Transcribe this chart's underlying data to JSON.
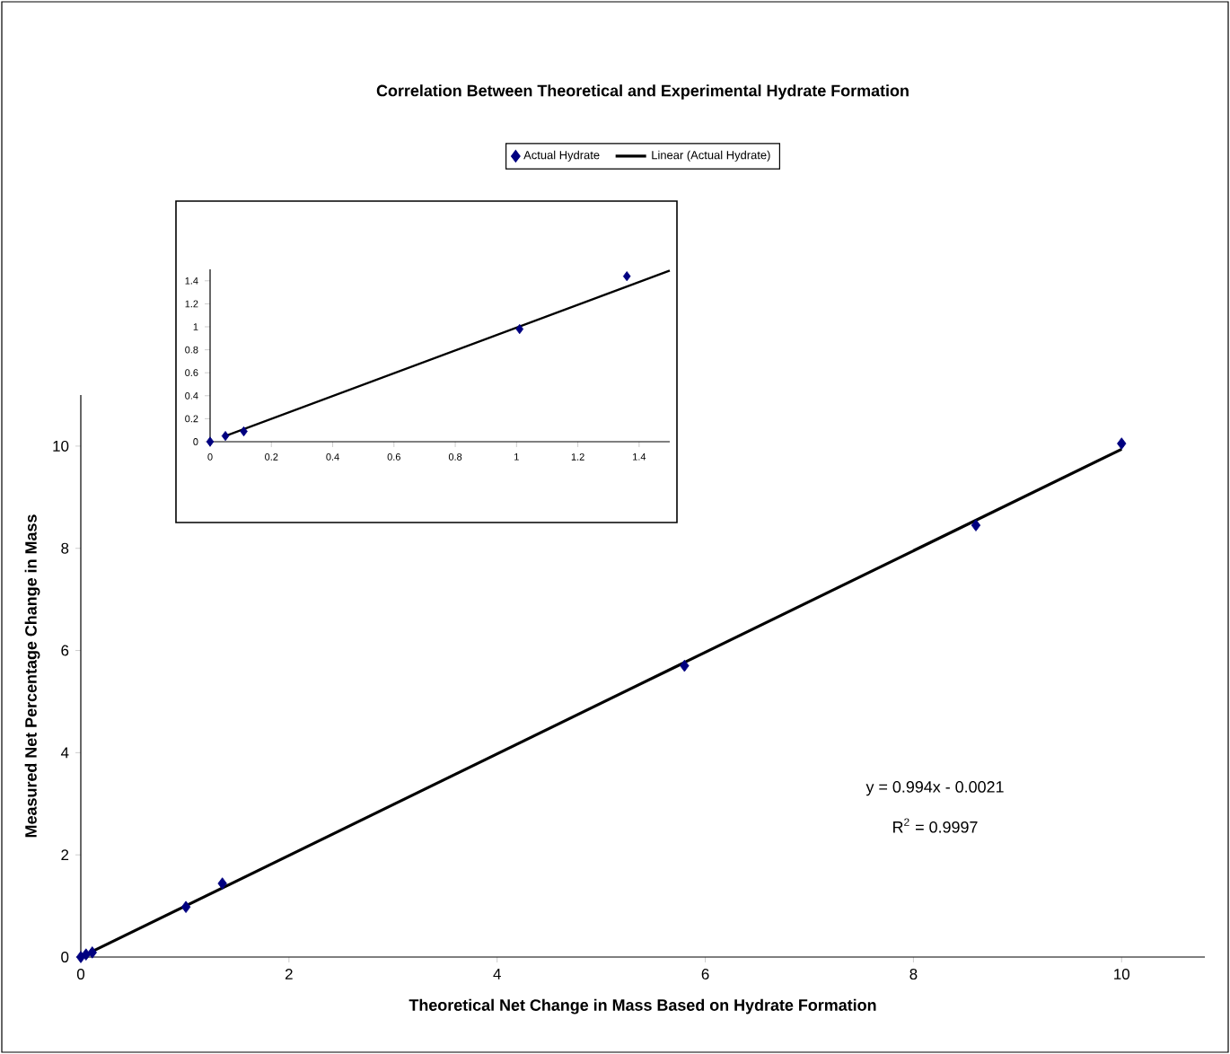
{
  "chart_data": [
    {
      "type": "scatter",
      "title": "Correlation Between Theoretical and Experimental Hydrate Formation",
      "xlabel": "Theoretical Net Change in Mass Based on Hydrate Formation",
      "ylabel": "Measured Net Percentage Change in Mass",
      "xlim": [
        0,
        10.8
      ],
      "ylim": [
        0,
        11
      ],
      "xticks": [
        0,
        2,
        4,
        6,
        8,
        10
      ],
      "yticks": [
        0,
        2,
        4,
        6,
        8,
        10
      ],
      "legend": "top",
      "annotations": [
        "y = 0.994x - 0.0021",
        "R$^{2}$ = 0.9997"
      ],
      "series": [
        {
          "name": "Actual Hydrate",
          "color": "#000080",
          "marker": "diamond",
          "x": [
            0,
            0.05,
            0.11,
            1.01,
            1.36,
            5.8,
            8.6,
            10
          ],
          "values": [
            0,
            0.05,
            0.09,
            0.98,
            1.44,
            5.7,
            8.45,
            10.05
          ]
        },
        {
          "name": "Linear (Actual Hydrate)",
          "type": "line",
          "marker": "none",
          "color": "#000000",
          "x": [
            0.05,
            10
          ],
          "values": [
            0.05,
            9.94
          ]
        }
      ]
    },
    {
      "type": "scatter",
      "xlim": [
        0,
        1.5
      ],
      "ylim": [
        0,
        1.5
      ],
      "xticks": [
        0,
        0.2,
        0.4,
        0.6,
        0.8,
        1,
        1.2,
        1.4
      ],
      "yticks": [
        0,
        0.2,
        0.4,
        0.6,
        0.8,
        1,
        1.2,
        1.4
      ],
      "series": [
        {
          "color": "#000080",
          "marker": "diamond",
          "x": [
            0,
            0.05,
            0.11,
            1.01,
            1.36
          ],
          "values": [
            0,
            0.05,
            0.09,
            0.98,
            1.44
          ]
        },
        {
          "type": "line",
          "marker": "none",
          "color": "#000000",
          "x": [
            0.05,
            1.5
          ],
          "values": [
            0.05,
            1.49
          ]
        }
      ]
    }
  ]
}
